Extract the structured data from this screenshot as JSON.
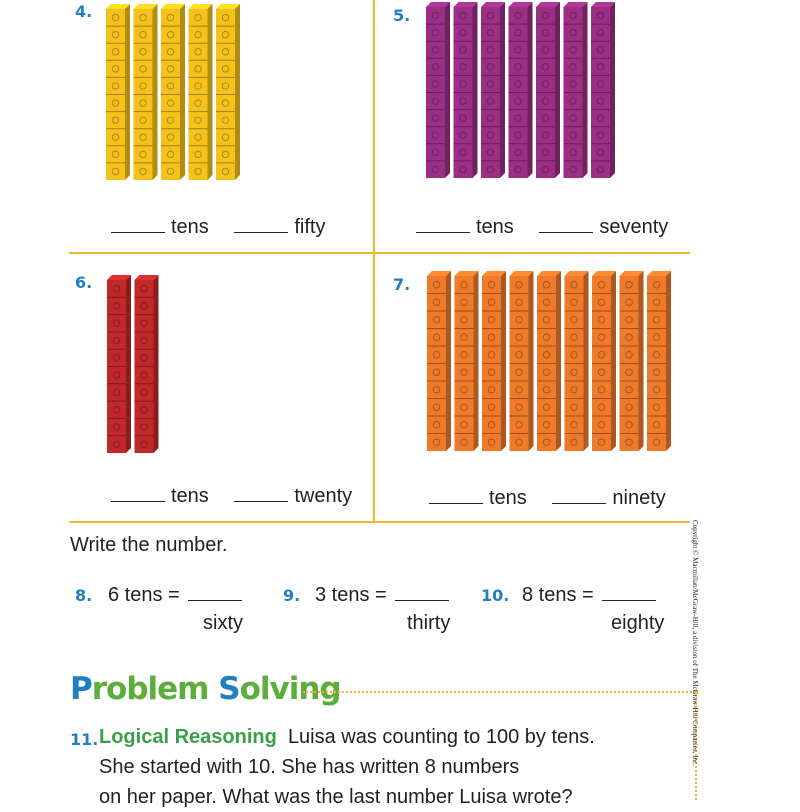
{
  "colors": {
    "grid": "#f2b632",
    "number_blue": "#1f7fc0",
    "logic_green": "#3aa048",
    "cube_yellow": "#f5c21b",
    "cube_purple": "#9b2f86",
    "cube_red": "#c0282a",
    "cube_orange": "#ef7a2a"
  },
  "problems": [
    {
      "num": "4.",
      "rods": 5,
      "color": "cube_yellow",
      "unit": "tens",
      "word": "fifty"
    },
    {
      "num": "5.",
      "rods": 7,
      "color": "cube_purple",
      "unit": "tens",
      "word": "seventy"
    },
    {
      "num": "6.",
      "rods": 2,
      "color": "cube_red",
      "unit": "tens",
      "word": "twenty"
    },
    {
      "num": "7.",
      "rods": 9,
      "color": "cube_orange",
      "unit": "tens",
      "word": "ninety"
    }
  ],
  "write_heading": "Write the number.",
  "equations": [
    {
      "num": "8.",
      "expr": "6 tens =",
      "word": "sixty"
    },
    {
      "num": "9.",
      "expr": "3 tens =",
      "word": "thirty"
    },
    {
      "num": "10.",
      "expr": "8 tens =",
      "word": "eighty"
    }
  ],
  "problem_solving": {
    "title_p": "P",
    "title_roblem": "roblem ",
    "title_s": "S",
    "title_olving": "olving",
    "num": "11.",
    "label": "Logical Reasoning",
    "line1": "Luisa was counting to 100 by tens.",
    "line2": "She started with 10. She has written 8 numbers",
    "line3": "on her paper. What was the last number Luisa wrote?"
  },
  "copyright": "Copyright © Macmillan/McGraw-Hill, a division of The McGraw-Hill Companies, Inc."
}
